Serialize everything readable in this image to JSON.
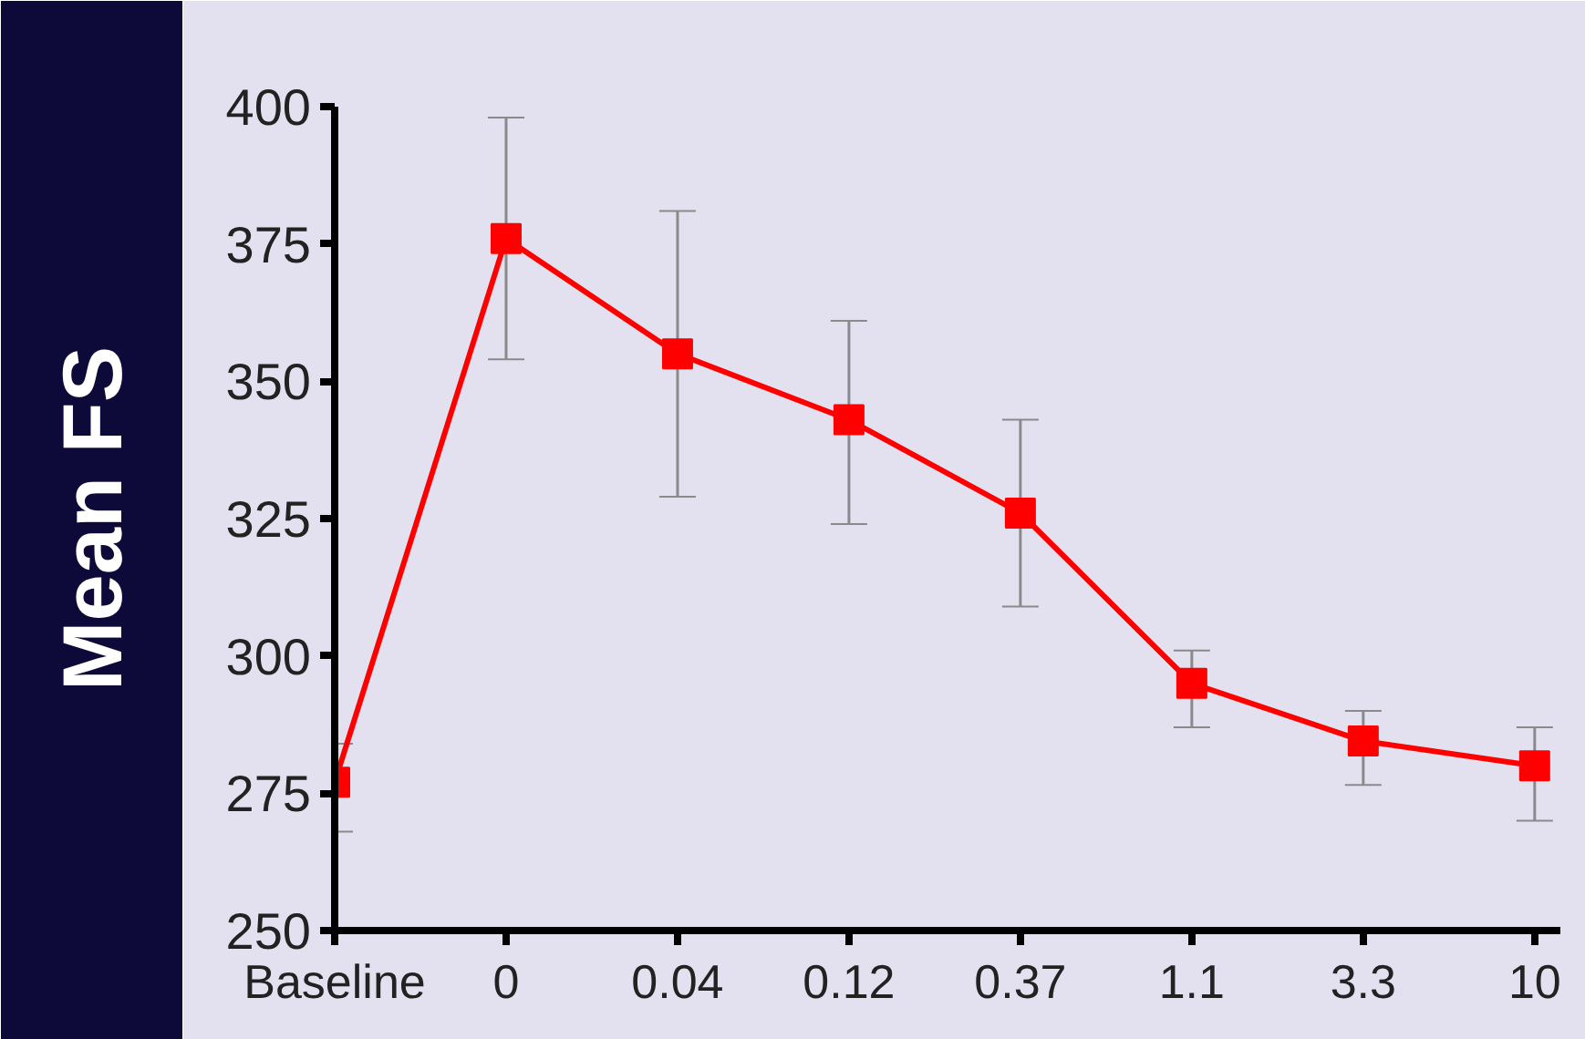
{
  "chart_data": {
    "type": "line",
    "ylabel": "Mean FS",
    "categories": [
      "Baseline",
      "0",
      "0.04",
      "0.12",
      "0.37",
      "1.1",
      "3.3",
      "10"
    ],
    "series": [
      {
        "color": "#ff0000",
        "values": [
          277,
          376,
          355,
          343,
          326,
          295,
          284.5,
          280
        ],
        "errors": [
          [
            268,
            284
          ],
          [
            354,
            398
          ],
          [
            329,
            381
          ],
          [
            324,
            361
          ],
          [
            309,
            343
          ],
          [
            287,
            301
          ],
          [
            276.5,
            290
          ],
          [
            270,
            287
          ]
        ]
      }
    ],
    "ylim": [
      250,
      400
    ],
    "yticks": [
      250,
      275,
      300,
      325,
      350,
      375,
      400
    ],
    "marker": "square",
    "line_style": "solid",
    "grid": false
  }
}
